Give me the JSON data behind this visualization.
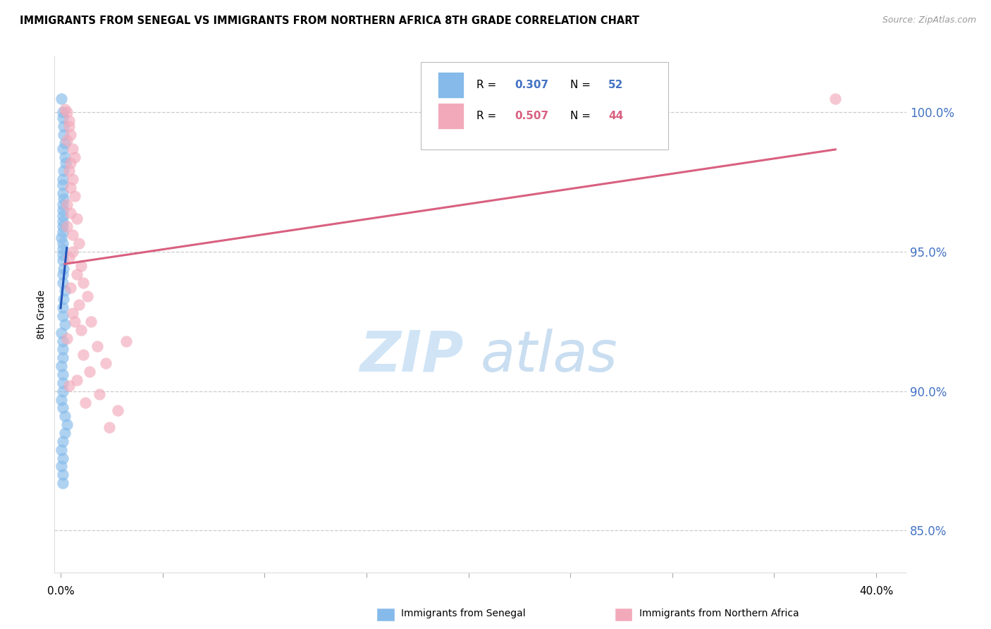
{
  "title": "IMMIGRANTS FROM SENEGAL VS IMMIGRANTS FROM NORTHERN AFRICA 8TH GRADE CORRELATION CHART",
  "source": "Source: ZipAtlas.com",
  "ylabel": "8th Grade",
  "yticks": [
    85.0,
    90.0,
    95.0,
    100.0
  ],
  "ytick_labels": [
    "85.0%",
    "90.0%",
    "95.0%",
    "100.0%"
  ],
  "ymin": 83.5,
  "ymax": 102.0,
  "xmin": -0.003,
  "xmax": 0.415,
  "color_senegal": "#85BAEA",
  "color_northern_africa": "#F2AABB",
  "trendline_senegal": "#2255BB",
  "trendline_northern_africa": "#D96080",
  "legend_label1": "R = 0.307   N = 52",
  "legend_label2": "R = 0.507   N = 44",
  "bottom_label1": "Immigrants from Senegal",
  "bottom_label2": "Immigrants from Northern Africa",
  "senegal_x": [
    0.0005,
    0.001,
    0.001,
    0.0015,
    0.0015,
    0.002,
    0.001,
    0.002,
    0.0025,
    0.0015,
    0.001,
    0.001,
    0.001,
    0.0015,
    0.001,
    0.001,
    0.001,
    0.001,
    0.001,
    0.001,
    0.0005,
    0.001,
    0.001,
    0.001,
    0.001,
    0.0015,
    0.001,
    0.001,
    0.002,
    0.0015,
    0.001,
    0.001,
    0.002,
    0.0005,
    0.001,
    0.001,
    0.001,
    0.0005,
    0.001,
    0.001,
    0.001,
    0.0005,
    0.001,
    0.002,
    0.003,
    0.002,
    0.001,
    0.0005,
    0.001,
    0.0005,
    0.001,
    0.001
  ],
  "senegal_y": [
    100.5,
    100.0,
    99.8,
    99.5,
    99.2,
    98.9,
    98.7,
    98.4,
    98.2,
    97.9,
    97.6,
    97.4,
    97.1,
    96.9,
    96.7,
    96.5,
    96.3,
    96.1,
    95.9,
    95.7,
    95.5,
    95.3,
    95.1,
    94.9,
    94.7,
    94.4,
    94.2,
    93.9,
    93.6,
    93.3,
    93.0,
    92.7,
    92.4,
    92.1,
    91.8,
    91.5,
    91.2,
    90.9,
    90.6,
    90.3,
    90.0,
    89.7,
    89.4,
    89.1,
    88.8,
    88.5,
    88.2,
    87.9,
    87.6,
    87.3,
    87.0,
    86.7
  ],
  "northern_africa_x": [
    0.002,
    0.003,
    0.004,
    0.004,
    0.005,
    0.003,
    0.006,
    0.007,
    0.005,
    0.004,
    0.006,
    0.005,
    0.007,
    0.003,
    0.005,
    0.008,
    0.003,
    0.006,
    0.009,
    0.006,
    0.004,
    0.01,
    0.008,
    0.011,
    0.005,
    0.013,
    0.009,
    0.006,
    0.015,
    0.01,
    0.003,
    0.018,
    0.011,
    0.022,
    0.014,
    0.008,
    0.004,
    0.019,
    0.012,
    0.028,
    0.007,
    0.024,
    0.38,
    0.032
  ],
  "northern_africa_y": [
    100.1,
    100.0,
    99.7,
    99.5,
    99.2,
    99.0,
    98.7,
    98.4,
    98.2,
    97.9,
    97.6,
    97.3,
    97.0,
    96.7,
    96.4,
    96.2,
    95.9,
    95.6,
    95.3,
    95.0,
    94.8,
    94.5,
    94.2,
    93.9,
    93.7,
    93.4,
    93.1,
    92.8,
    92.5,
    92.2,
    91.9,
    91.6,
    91.3,
    91.0,
    90.7,
    90.4,
    90.2,
    89.9,
    89.6,
    89.3,
    92.5,
    88.7,
    100.5,
    91.8
  ]
}
